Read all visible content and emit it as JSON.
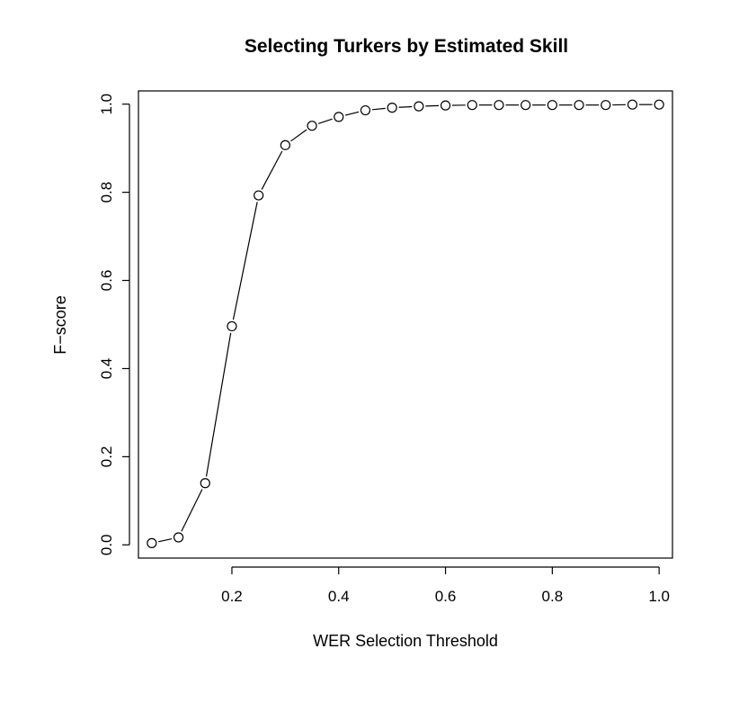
{
  "chart_data": {
    "type": "line",
    "title": "Selecting Turkers by Estimated Skill",
    "xlabel": "WER Selection Threshold",
    "ylabel": "F−score",
    "xlim": [
      0.025,
      1.025
    ],
    "ylim": [
      -0.03,
      1.03
    ],
    "xticks": [
      0.2,
      0.4,
      0.6,
      0.8,
      1.0
    ],
    "yticks": [
      0.0,
      0.2,
      0.4,
      0.6,
      0.8,
      1.0
    ],
    "xtick_labels": [
      "0.2",
      "0.4",
      "0.6",
      "0.8",
      "1.0"
    ],
    "ytick_labels": [
      "0.0",
      "0.2",
      "0.4",
      "0.6",
      "0.8",
      "1.0"
    ],
    "grid": false,
    "marker": "open-circle",
    "series": [
      {
        "x": [
          0.05,
          0.1,
          0.15,
          0.2,
          0.25,
          0.3,
          0.35,
          0.4,
          0.45,
          0.5,
          0.55,
          0.6,
          0.65,
          0.7,
          0.75,
          0.8,
          0.85,
          0.9,
          0.95,
          1.0
        ],
        "values": [
          0.004,
          0.017,
          0.14,
          0.496,
          0.793,
          0.907,
          0.951,
          0.971,
          0.986,
          0.992,
          0.995,
          0.997,
          0.998,
          0.998,
          0.998,
          0.998,
          0.998,
          0.998,
          0.999,
          0.999
        ]
      }
    ]
  }
}
